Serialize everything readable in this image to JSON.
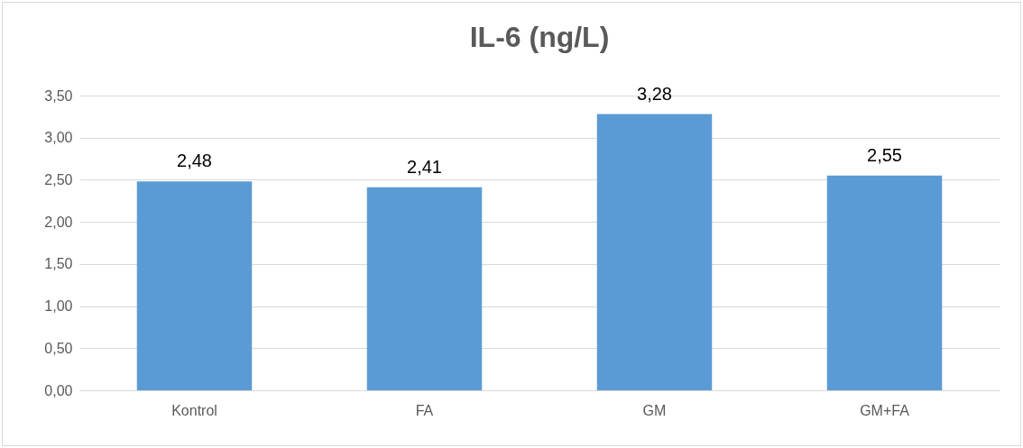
{
  "chart_data": {
    "type": "bar",
    "title": "IL-6 (ng/L)",
    "categories": [
      "Kontrol",
      "FA",
      "GM",
      "GM+FA"
    ],
    "values": [
      2.48,
      2.41,
      3.28,
      2.55
    ],
    "value_labels": [
      "2,48",
      "2,41",
      "3,28",
      "2,55"
    ],
    "color": "#5b9bd5",
    "ylim": [
      0,
      3.5
    ],
    "yticks": [
      {
        "value": 0,
        "label": "0,00"
      },
      {
        "value": 0.5,
        "label": "0,50"
      },
      {
        "value": 1,
        "label": "1,00"
      },
      {
        "value": 1.5,
        "label": "1,50"
      },
      {
        "value": 2,
        "label": "2,00"
      },
      {
        "value": 2.5,
        "label": "2,50"
      },
      {
        "value": 3,
        "label": "3,00"
      },
      {
        "value": 3.5,
        "label": "3,50"
      }
    ],
    "grid": "y"
  }
}
